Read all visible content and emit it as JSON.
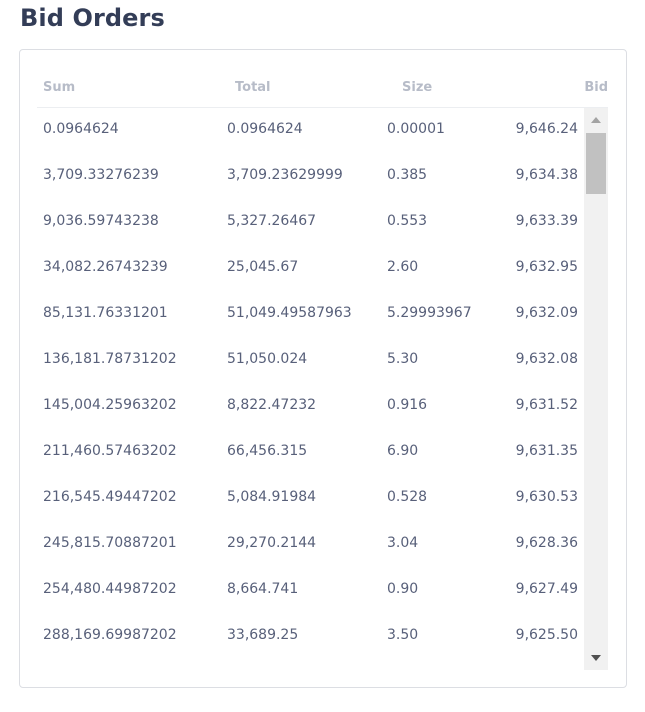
{
  "panel": {
    "title": "Bid Orders",
    "columns": {
      "sum": "Sum",
      "total": "Total",
      "size": "Size",
      "bid": "Bid"
    },
    "rows": [
      {
        "sum": "0.0964624",
        "total": "0.0964624",
        "size": "0.00001",
        "bid": "9,646.24"
      },
      {
        "sum": "3,709.33276239",
        "total": "3,709.23629999",
        "size": "0.385",
        "bid": "9,634.38"
      },
      {
        "sum": "9,036.59743238",
        "total": "5,327.26467",
        "size": "0.553",
        "bid": "9,633.39"
      },
      {
        "sum": "34,082.26743239",
        "total": "25,045.67",
        "size": "2.60",
        "bid": "9,632.95"
      },
      {
        "sum": "85,131.76331201",
        "total": "51,049.49587963",
        "size": "5.29993967",
        "bid": "9,632.09"
      },
      {
        "sum": "136,181.78731202",
        "total": "51,050.024",
        "size": "5.30",
        "bid": "9,632.08"
      },
      {
        "sum": "145,004.25963202",
        "total": "8,822.47232",
        "size": "0.916",
        "bid": "9,631.52"
      },
      {
        "sum": "211,460.57463202",
        "total": "66,456.315",
        "size": "6.90",
        "bid": "9,631.35"
      },
      {
        "sum": "216,545.49447202",
        "total": "5,084.91984",
        "size": "0.528",
        "bid": "9,630.53"
      },
      {
        "sum": "245,815.70887201",
        "total": "29,270.2144",
        "size": "3.04",
        "bid": "9,628.36"
      },
      {
        "sum": "254,480.44987202",
        "total": "8,664.741",
        "size": "0.90",
        "bid": "9,627.49"
      },
      {
        "sum": "288,169.69987202",
        "total": "33,689.25",
        "size": "3.50",
        "bid": "9,625.50"
      }
    ]
  }
}
